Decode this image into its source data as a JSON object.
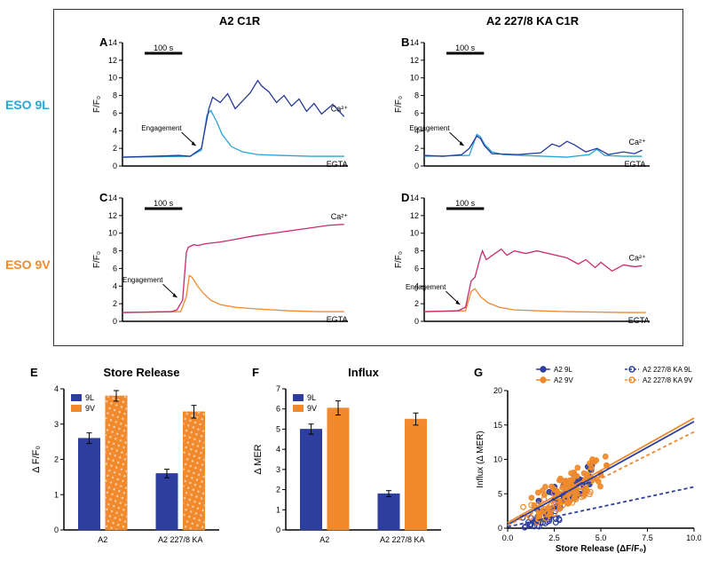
{
  "columns": {
    "left": "A2 C1R",
    "right": "A2 227/8 KA C1R"
  },
  "rows": {
    "eso9l": {
      "label": "ESO 9L",
      "label_color": "#2aa4d6"
    },
    "eso9v": {
      "label": "ESO 9V",
      "label_color": "#f08a2c"
    }
  },
  "panels": {
    "A": {
      "letter": "A",
      "scalebar": "100 s",
      "ylabel": "F/F₀",
      "engagement": "Engagement",
      "cond_ca": "Ca²⁺",
      "cond_egta": "EGTA",
      "ca_color": "#283a9a",
      "egta_color": "#2aa4d6",
      "ca_points": [
        [
          0,
          1
        ],
        [
          80,
          1.1
        ],
        [
          150,
          1.2
        ],
        [
          180,
          1.1
        ],
        [
          210,
          2
        ],
        [
          230,
          6.5
        ],
        [
          240,
          7.8
        ],
        [
          260,
          7.2
        ],
        [
          280,
          8.2
        ],
        [
          300,
          6.5
        ],
        [
          320,
          7.4
        ],
        [
          340,
          8.3
        ],
        [
          360,
          9.7
        ],
        [
          370,
          9.1
        ],
        [
          390,
          8.4
        ],
        [
          410,
          7.2
        ],
        [
          430,
          8.0
        ],
        [
          450,
          6.8
        ],
        [
          470,
          7.6
        ],
        [
          490,
          6.2
        ],
        [
          510,
          7.1
        ],
        [
          530,
          5.9
        ],
        [
          560,
          7.0
        ],
        [
          590,
          5.6
        ]
      ],
      "egta_points": [
        [
          0,
          1
        ],
        [
          180,
          1.1
        ],
        [
          210,
          1.8
        ],
        [
          225,
          5.8
        ],
        [
          235,
          6.3
        ],
        [
          250,
          5.1
        ],
        [
          265,
          3.6
        ],
        [
          290,
          2.2
        ],
        [
          320,
          1.6
        ],
        [
          360,
          1.3
        ],
        [
          420,
          1.2
        ],
        [
          500,
          1.1
        ],
        [
          590,
          1.1
        ]
      ]
    },
    "B": {
      "letter": "B",
      "scalebar": "100 s",
      "ylabel": "F/F₀",
      "engagement": "Engagement",
      "cond_ca": "Ca²⁺",
      "cond_egta": "EGTA",
      "ca_color": "#283a9a",
      "egta_color": "#2aa4d6",
      "ca_points": [
        [
          0,
          1.2
        ],
        [
          50,
          1.1
        ],
        [
          100,
          1.3
        ],
        [
          120,
          2.0
        ],
        [
          140,
          3.4
        ],
        [
          150,
          3.1
        ],
        [
          160,
          2.3
        ],
        [
          180,
          1.4
        ],
        [
          250,
          1.3
        ],
        [
          310,
          1.5
        ],
        [
          340,
          2.5
        ],
        [
          360,
          2.2
        ],
        [
          380,
          2.8
        ],
        [
          400,
          2.4
        ],
        [
          430,
          1.6
        ],
        [
          460,
          2.0
        ],
        [
          490,
          1.3
        ],
        [
          530,
          1.6
        ],
        [
          560,
          1.4
        ],
        [
          580,
          1.8
        ]
      ],
      "egta_points": [
        [
          0,
          1.1
        ],
        [
          120,
          1.2
        ],
        [
          140,
          3.6
        ],
        [
          150,
          3.3
        ],
        [
          160,
          2.5
        ],
        [
          180,
          1.6
        ],
        [
          210,
          1.3
        ],
        [
          260,
          1.2
        ],
        [
          320,
          1.1
        ],
        [
          380,
          1.0
        ],
        [
          440,
          1.3
        ],
        [
          460,
          1.9
        ],
        [
          480,
          1.2
        ],
        [
          530,
          1.1
        ],
        [
          580,
          1.1
        ]
      ]
    },
    "C": {
      "letter": "C",
      "scalebar": "100 s",
      "ylabel": "F/F₀",
      "engagement": "Engagement",
      "cond_ca": "Ca²⁺",
      "cond_egta": "EGTA",
      "ca_color": "#c72c6c",
      "egta_color": "#f08a2c",
      "ca_points": [
        [
          0,
          1
        ],
        [
          130,
          1.1
        ],
        [
          145,
          1.3
        ],
        [
          160,
          2.4
        ],
        [
          170,
          7.8
        ],
        [
          175,
          8.4
        ],
        [
          190,
          8.7
        ],
        [
          200,
          8.6
        ],
        [
          220,
          8.8
        ],
        [
          260,
          9.0
        ],
        [
          300,
          9.3
        ],
        [
          350,
          9.7
        ],
        [
          400,
          10.0
        ],
        [
          450,
          10.3
        ],
        [
          500,
          10.6
        ],
        [
          550,
          10.9
        ],
        [
          590,
          11.0
        ]
      ],
      "egta_points": [
        [
          0,
          1
        ],
        [
          155,
          1.1
        ],
        [
          170,
          2.8
        ],
        [
          178,
          5.2
        ],
        [
          185,
          5.0
        ],
        [
          200,
          4.0
        ],
        [
          215,
          3.2
        ],
        [
          235,
          2.4
        ],
        [
          260,
          1.9
        ],
        [
          300,
          1.6
        ],
        [
          360,
          1.4
        ],
        [
          440,
          1.2
        ],
        [
          520,
          1.1
        ],
        [
          590,
          1.1
        ]
      ]
    },
    "D": {
      "letter": "D",
      "scalebar": "100 s",
      "ylabel": "F/F₀",
      "engagement": "Engagement",
      "cond_ca": "Ca²⁺",
      "cond_egta": "EGTA",
      "ca_color": "#c72c6c",
      "egta_color": "#f08a2c",
      "ca_points": [
        [
          0,
          1.1
        ],
        [
          90,
          1.2
        ],
        [
          110,
          1.6
        ],
        [
          125,
          4.6
        ],
        [
          135,
          5.0
        ],
        [
          150,
          7.4
        ],
        [
          155,
          8.0
        ],
        [
          165,
          7.0
        ],
        [
          185,
          7.6
        ],
        [
          205,
          8.2
        ],
        [
          220,
          7.5
        ],
        [
          240,
          8.0
        ],
        [
          270,
          7.7
        ],
        [
          300,
          8.0
        ],
        [
          340,
          7.6
        ],
        [
          380,
          7.2
        ],
        [
          410,
          6.5
        ],
        [
          430,
          7.0
        ],
        [
          455,
          6.1
        ],
        [
          470,
          6.7
        ],
        [
          500,
          5.7
        ],
        [
          530,
          6.4
        ],
        [
          560,
          6.2
        ],
        [
          580,
          6.3
        ]
      ],
      "egta_points": [
        [
          0,
          1.1
        ],
        [
          110,
          1.2
        ],
        [
          125,
          3.4
        ],
        [
          135,
          3.7
        ],
        [
          150,
          2.8
        ],
        [
          170,
          2.1
        ],
        [
          200,
          1.6
        ],
        [
          240,
          1.3
        ],
        [
          300,
          1.2
        ],
        [
          380,
          1.1
        ],
        [
          460,
          1.05
        ],
        [
          540,
          1.0
        ],
        [
          590,
          1.0
        ]
      ]
    },
    "E": {
      "letter": "E",
      "title": "Store Release",
      "ylabel": "Δ F/F₀",
      "legend": [
        {
          "k": "9L",
          "c": "#2d3e9e"
        },
        {
          "k": "9V",
          "c": "#f08a2c"
        }
      ],
      "categories": [
        "A2",
        "A2 227/8 KA"
      ],
      "series": {
        "9L": {
          "color": "#2d3e9e",
          "values": [
            2.6,
            1.6
          ],
          "err": [
            0.15,
            0.12
          ]
        },
        "9V": {
          "color": "#f08a2c",
          "pattern": true,
          "values": [
            3.8,
            3.35
          ],
          "err": [
            0.15,
            0.18
          ]
        }
      },
      "ymax": 4,
      "ytick": 1
    },
    "F": {
      "letter": "F",
      "title": "Influx",
      "ylabel": "Δ MER",
      "legend": [
        {
          "k": "9L",
          "c": "#2d3e9e"
        },
        {
          "k": "9V",
          "c": "#f08a2c"
        }
      ],
      "categories": [
        "A2",
        "A2 227/8 KA"
      ],
      "series": {
        "9L": {
          "color": "#2d3e9e",
          "values": [
            5.0,
            1.8
          ],
          "err": [
            0.25,
            0.15
          ]
        },
        "9V": {
          "color": "#f08a2c",
          "values": [
            6.05,
            5.5
          ],
          "err": [
            0.35,
            0.3
          ]
        }
      },
      "ymax": 7,
      "ytick": 1
    },
    "G": {
      "letter": "G",
      "xlabel": "Store Release (ΔF/F₀)",
      "ylabel": "Influx (Δ MER)",
      "xlim": [
        0,
        10
      ],
      "ylim": [
        0,
        20
      ],
      "xtick": 2.5,
      "ytick": 5,
      "legend": [
        {
          "k": "A2 9L",
          "c": "#2d3e9e",
          "style": "solid",
          "fill": true
        },
        {
          "k": "A2 227/8 KA 9L",
          "c": "#2d3e9e",
          "style": "dashed",
          "fill": false
        },
        {
          "k": "A2 9V",
          "c": "#f08a2c",
          "style": "solid",
          "fill": true
        },
        {
          "k": "A2 227/8 KA 9V",
          "c": "#f08a2c",
          "style": "dashed",
          "fill": false
        }
      ],
      "fits": {
        "A2_9L": {
          "color": "#2d3e9e",
          "dash": false,
          "p1": [
            0,
            0.5
          ],
          "p2": [
            10,
            15.5
          ]
        },
        "A2KA_9L": {
          "color": "#2d3e9e",
          "dash": true,
          "p1": [
            0,
            0.2
          ],
          "p2": [
            10,
            6.0
          ]
        },
        "A2_9V": {
          "color": "#f08a2c",
          "dash": false,
          "p1": [
            0,
            0.8
          ],
          "p2": [
            10,
            16.0
          ]
        },
        "A2KA_9V": {
          "color": "#f08a2c",
          "dash": true,
          "p1": [
            0,
            0.4
          ],
          "p2": [
            10,
            14.0
          ]
        }
      },
      "scatter_seed": 42,
      "scatter_n": 200
    }
  },
  "trace_axes": {
    "ymin": 0,
    "ymax": 14,
    "ytick": 2,
    "xmax": 600
  }
}
